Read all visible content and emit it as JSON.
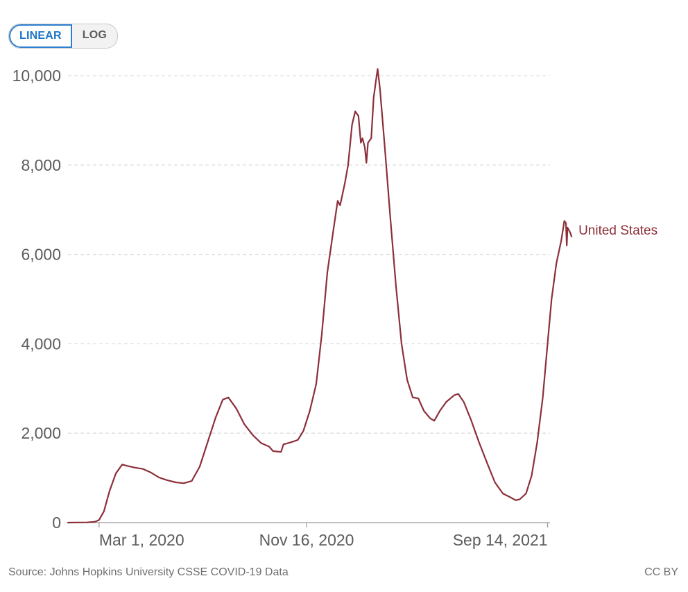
{
  "toggle": {
    "linear_label": "LINEAR",
    "log_label": "LOG",
    "selected": "LINEAR"
  },
  "footer": {
    "source": "Source: Johns Hopkins University CSSE COVID-19 Data",
    "license": "CC BY"
  },
  "colors": {
    "series": "#8c2f39",
    "grid": "#dddddd",
    "axis": "#999999",
    "toggle_active": "#1d74c5"
  },
  "chart_data": {
    "type": "line",
    "title": "",
    "xlabel": "",
    "ylabel": "",
    "x_range": [
      "2020-01-22",
      "2021-09-17"
    ],
    "ylim": [
      0,
      10000
    ],
    "y_ticks": [
      0,
      2000,
      4000,
      6000,
      8000,
      10000
    ],
    "y_tick_labels": [
      "0",
      "2,000",
      "4,000",
      "6,000",
      "8,000",
      "10,000"
    ],
    "x_ticks": [
      {
        "date": "2020-03-01",
        "label": "Mar 1, 2020"
      },
      {
        "date": "2020-11-16",
        "label": "Nov 16, 2020"
      },
      {
        "date": "2021-09-14",
        "label": "Sep 14, 2021"
      }
    ],
    "grid": "horizontal dashed",
    "series": [
      {
        "name": "United States",
        "points": [
          [
            "2020-01-22",
            0
          ],
          [
            "2020-02-15",
            5
          ],
          [
            "2020-02-25",
            20
          ],
          [
            "2020-03-01",
            60
          ],
          [
            "2020-03-07",
            250
          ],
          [
            "2020-03-14",
            700
          ],
          [
            "2020-03-22",
            1100
          ],
          [
            "2020-03-30",
            1300
          ],
          [
            "2020-04-05",
            1270
          ],
          [
            "2020-04-15",
            1230
          ],
          [
            "2020-04-25",
            1200
          ],
          [
            "2020-05-05",
            1120
          ],
          [
            "2020-05-15",
            1010
          ],
          [
            "2020-05-25",
            950
          ],
          [
            "2020-06-05",
            900
          ],
          [
            "2020-06-15",
            880
          ],
          [
            "2020-06-25",
            930
          ],
          [
            "2020-07-05",
            1250
          ],
          [
            "2020-07-15",
            1800
          ],
          [
            "2020-07-25",
            2350
          ],
          [
            "2020-08-03",
            2750
          ],
          [
            "2020-08-10",
            2800
          ],
          [
            "2020-08-20",
            2550
          ],
          [
            "2020-08-30",
            2200
          ],
          [
            "2020-09-10",
            1950
          ],
          [
            "2020-09-20",
            1780
          ],
          [
            "2020-09-30",
            1700
          ],
          [
            "2020-10-05",
            1600
          ],
          [
            "2020-10-15",
            1580
          ],
          [
            "2020-10-18",
            1750
          ],
          [
            "2020-10-28",
            1800
          ],
          [
            "2020-11-05",
            1850
          ],
          [
            "2020-11-12",
            2050
          ],
          [
            "2020-11-20",
            2500
          ],
          [
            "2020-11-28",
            3100
          ],
          [
            "2020-12-05",
            4200
          ],
          [
            "2020-12-12",
            5600
          ],
          [
            "2020-12-20",
            6600
          ],
          [
            "2020-12-25",
            7200
          ],
          [
            "2020-12-28",
            7100
          ],
          [
            "2021-01-03",
            7600
          ],
          [
            "2021-01-07",
            8000
          ],
          [
            "2021-01-12",
            8900
          ],
          [
            "2021-01-16",
            9200
          ],
          [
            "2021-01-20",
            9100
          ],
          [
            "2021-01-23",
            8500
          ],
          [
            "2021-01-25",
            8600
          ],
          [
            "2021-01-28",
            8400
          ],
          [
            "2021-01-30",
            8050
          ],
          [
            "2021-02-01",
            8500
          ],
          [
            "2021-02-05",
            8600
          ],
          [
            "2021-02-08",
            9500
          ],
          [
            "2021-02-11",
            9900
          ],
          [
            "2021-02-13",
            10150
          ],
          [
            "2021-02-16",
            9700
          ],
          [
            "2021-02-22",
            8400
          ],
          [
            "2021-03-01",
            6800
          ],
          [
            "2021-03-08",
            5300
          ],
          [
            "2021-03-15",
            4000
          ],
          [
            "2021-03-22",
            3200
          ],
          [
            "2021-03-29",
            2800
          ],
          [
            "2021-04-05",
            2780
          ],
          [
            "2021-04-12",
            2500
          ],
          [
            "2021-04-20",
            2330
          ],
          [
            "2021-04-25",
            2280
          ],
          [
            "2021-05-02",
            2500
          ],
          [
            "2021-05-10",
            2700
          ],
          [
            "2021-05-20",
            2850
          ],
          [
            "2021-05-25",
            2880
          ],
          [
            "2021-06-01",
            2700
          ],
          [
            "2021-06-10",
            2300
          ],
          [
            "2021-06-20",
            1800
          ],
          [
            "2021-07-01",
            1300
          ],
          [
            "2021-07-10",
            900
          ],
          [
            "2021-07-20",
            650
          ],
          [
            "2021-07-30",
            560
          ],
          [
            "2021-08-05",
            500
          ],
          [
            "2021-08-10",
            520
          ],
          [
            "2021-08-18",
            650
          ],
          [
            "2021-08-25",
            1050
          ],
          [
            "2021-09-01",
            1800
          ],
          [
            "2021-09-08",
            2800
          ],
          [
            "2021-09-14",
            4000
          ],
          [
            "2021-09-19",
            5000
          ],
          [
            "2021-09-25",
            5800
          ],
          [
            "2021-10-01",
            6300
          ],
          [
            "2021-10-05",
            6750
          ],
          [
            "2021-10-07",
            6700
          ],
          [
            "2021-10-08",
            6200
          ],
          [
            "2021-10-09",
            6600
          ],
          [
            "2021-10-12",
            6500
          ],
          [
            "2021-10-14",
            6400
          ]
        ]
      }
    ]
  }
}
